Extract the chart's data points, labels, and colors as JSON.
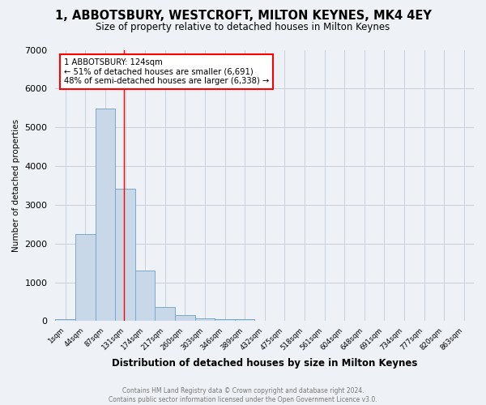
{
  "title": "1, ABBOTSBURY, WESTCROFT, MILTON KEYNES, MK4 4EY",
  "subtitle": "Size of property relative to detached houses in Milton Keynes",
  "xlabel": "Distribution of detached houses by size in Milton Keynes",
  "ylabel": "Number of detached properties",
  "footer_line1": "Contains HM Land Registry data © Crown copyright and database right 2024.",
  "footer_line2": "Contains public sector information licensed under the Open Government Licence v3.0.",
  "bin_labels": [
    "1sqm",
    "44sqm",
    "87sqm",
    "131sqm",
    "174sqm",
    "217sqm",
    "260sqm",
    "303sqm",
    "346sqm",
    "389sqm",
    "432sqm",
    "475sqm",
    "518sqm",
    "561sqm",
    "604sqm",
    "648sqm",
    "691sqm",
    "734sqm",
    "777sqm",
    "820sqm",
    "863sqm"
  ],
  "bar_values": [
    50,
    2250,
    5480,
    3420,
    1300,
    370,
    155,
    75,
    50,
    55,
    0,
    0,
    0,
    0,
    0,
    0,
    0,
    0,
    0,
    0,
    0
  ],
  "bar_color": "#c8d8e8",
  "bar_edge_color": "#7aaac8",
  "red_line_bin_index": 2.93,
  "annotation_text": "1 ABBOTSBURY: 124sqm\n← 51% of detached houses are smaller (6,691)\n48% of semi-detached houses are larger (6,338) →",
  "ylim": [
    0,
    7000
  ],
  "background_color": "#eef2f7",
  "grid_color": "#c8d0dc",
  "title_fontsize": 10.5,
  "subtitle_fontsize": 8.5
}
